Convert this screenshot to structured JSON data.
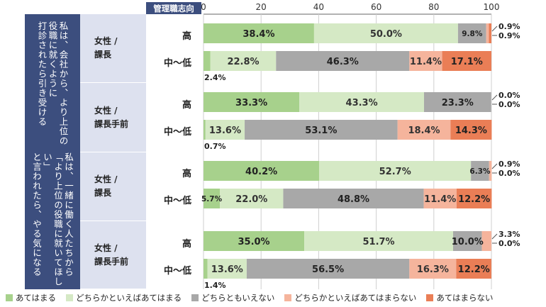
{
  "chart_data": {
    "type": "bar",
    "orientation": "horizontal",
    "stacked": true,
    "header_label": "管理職志向",
    "xlim": [
      0,
      100
    ],
    "xticks": [
      0,
      20,
      40,
      60,
      80,
      100
    ],
    "series": [
      {
        "name": "あてはまる",
        "color": "#a7d18c"
      },
      {
        "name": "どちらかといえばあてはまる",
        "color": "#d5e9c5"
      },
      {
        "name": "どちらともいえない",
        "color": "#a8a8a8"
      },
      {
        "name": "どちらかといえばあてはまらない",
        "color": "#f5b49c"
      },
      {
        "name": "あてはまらない",
        "color": "#ea7e56"
      }
    ],
    "sections": [
      {
        "label": "私は、会社から、より上位の\n役職に就くように\n打診されたら引き受ける"
      },
      {
        "label": "私は、一緒に働く人たちから\n「より上位の役職に就いてほしい」\nと言われたら、やる気になる"
      }
    ],
    "groups": [
      {
        "label": "女性 /\n課長"
      },
      {
        "label": "女性 /\n課長手前"
      },
      {
        "label": "女性 /\n課長"
      },
      {
        "label": "女性 /\n課長手前"
      }
    ],
    "rows": [
      {
        "level": "高",
        "values": [
          38.4,
          50.0,
          9.8,
          0.9,
          0.9
        ],
        "labels": [
          "38.4%",
          "50.0%",
          "9.8%",
          "0.9%",
          "0.9%"
        ]
      },
      {
        "level": "中～低",
        "values": [
          2.4,
          22.8,
          46.3,
          11.4,
          17.1
        ],
        "labels": [
          "2.4%",
          "22.8%",
          "46.3%",
          "11.4%",
          "17.1%"
        ]
      },
      {
        "level": "高",
        "values": [
          33.3,
          43.3,
          23.3,
          0.0,
          0.0
        ],
        "labels": [
          "33.3%",
          "43.3%",
          "23.3%",
          "0.0%",
          "0.0%"
        ]
      },
      {
        "level": "中～低",
        "values": [
          0.7,
          13.6,
          53.1,
          18.4,
          14.3
        ],
        "labels": [
          "0.7%",
          "13.6%",
          "53.1%",
          "18.4%",
          "14.3%"
        ]
      },
      {
        "level": "高",
        "values": [
          40.2,
          52.7,
          6.3,
          0.9,
          0.0
        ],
        "labels": [
          "40.2%",
          "52.7%",
          "6.3%",
          "0.9%",
          "0.0%"
        ]
      },
      {
        "level": "中～低",
        "values": [
          5.7,
          22.0,
          48.8,
          11.4,
          12.2
        ],
        "labels": [
          "5.7%",
          "22.0%",
          "48.8%",
          "11.4%",
          "12.2%"
        ]
      },
      {
        "level": "高",
        "values": [
          35.0,
          51.7,
          10.0,
          3.3,
          0.0
        ],
        "labels": [
          "35.0%",
          "51.7%",
          "10.0%",
          "3.3%",
          "0.0%"
        ]
      },
      {
        "level": "中～低",
        "values": [
          1.4,
          13.6,
          56.5,
          16.3,
          12.2
        ],
        "labels": [
          "1.4%",
          "13.6%",
          "56.5%",
          "16.3%",
          "12.2%"
        ]
      }
    ]
  }
}
